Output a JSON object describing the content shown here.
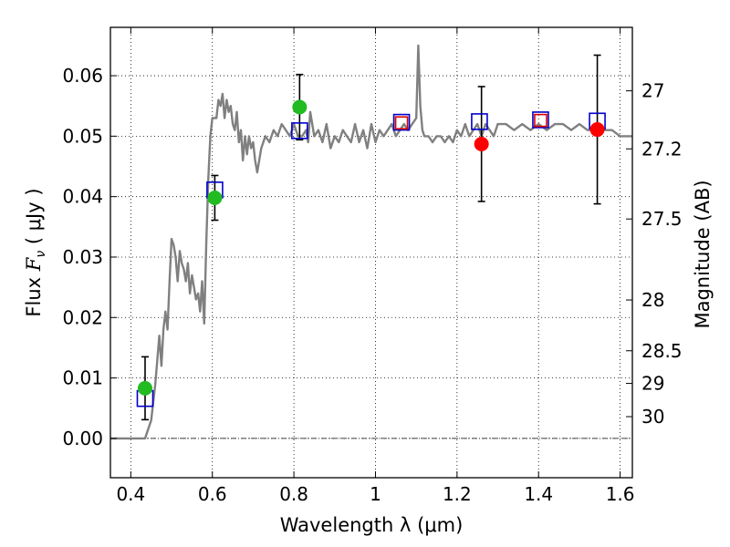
{
  "chart_data": {
    "type": "scatter",
    "xlabel": "Wavelength  λ (μm)",
    "ylabel": "Flux  F_ν  ( μJy )",
    "ylabel_parts": {
      "prefix": "Flux  ",
      "symbol": "F",
      "subscript": "ν",
      "suffix": "  ( μJy )"
    },
    "y2label": "Magnitude (AB)",
    "xlim": [
      0.35,
      1.63
    ],
    "ylim": [
      -0.0065,
      0.068
    ],
    "grid": true,
    "x_ticks": [
      0.4,
      0.6,
      0.8,
      1.0,
      1.2,
      1.4,
      1.6
    ],
    "x_tick_labels": [
      "0.4",
      "0.6",
      "0.8",
      "1",
      "1.2",
      "1.4",
      "1.6"
    ],
    "y_ticks": [
      0.0,
      0.01,
      0.02,
      0.03,
      0.04,
      0.05,
      0.06
    ],
    "y_tick_labels": [
      "0.00",
      "0.01",
      "0.02",
      "0.03",
      "0.04",
      "0.05",
      "0.06"
    ],
    "mag_ticks": [
      {
        "label": "27",
        "flux": 0.0575
      },
      {
        "label": "27.2",
        "flux": 0.0479
      },
      {
        "label": "27.5",
        "flux": 0.0363
      },
      {
        "label": "28",
        "flux": 0.0229
      },
      {
        "label": "28.5",
        "flux": 0.0145
      },
      {
        "label": "29",
        "flux": 0.0091
      },
      {
        "label": "30",
        "flux": 0.0036
      }
    ],
    "colors": {
      "model": "#808080",
      "green": "#22bb22",
      "red": "#ff0000",
      "box_blue": "#0000cc",
      "box_red": "#dd0000",
      "errorbar": "#000000"
    },
    "model_spectrum": {
      "name": "",
      "x": [
        0.35,
        0.42,
        0.435,
        0.44,
        0.45,
        0.46,
        0.465,
        0.47,
        0.475,
        0.48,
        0.485,
        0.49,
        0.495,
        0.5,
        0.505,
        0.51,
        0.515,
        0.52,
        0.525,
        0.53,
        0.535,
        0.54,
        0.545,
        0.55,
        0.555,
        0.56,
        0.565,
        0.57,
        0.575,
        0.58,
        0.585,
        0.59,
        0.595,
        0.6,
        0.605,
        0.61,
        0.615,
        0.62,
        0.625,
        0.63,
        0.635,
        0.64,
        0.645,
        0.65,
        0.655,
        0.66,
        0.665,
        0.67,
        0.675,
        0.68,
        0.685,
        0.69,
        0.695,
        0.7,
        0.705,
        0.71,
        0.72,
        0.73,
        0.74,
        0.75,
        0.76,
        0.77,
        0.78,
        0.79,
        0.8,
        0.81,
        0.82,
        0.83,
        0.835,
        0.84,
        0.85,
        0.86,
        0.87,
        0.88,
        0.89,
        0.9,
        0.91,
        0.92,
        0.93,
        0.94,
        0.95,
        0.96,
        0.97,
        0.98,
        0.99,
        1.0,
        1.01,
        1.02,
        1.03,
        1.04,
        1.05,
        1.06,
        1.07,
        1.08,
        1.09,
        1.1,
        1.105,
        1.11,
        1.115,
        1.12,
        1.13,
        1.14,
        1.15,
        1.16,
        1.17,
        1.18,
        1.19,
        1.2,
        1.21,
        1.22,
        1.23,
        1.24,
        1.25,
        1.26,
        1.27,
        1.28,
        1.29,
        1.3,
        1.32,
        1.34,
        1.36,
        1.38,
        1.4,
        1.42,
        1.44,
        1.46,
        1.48,
        1.5,
        1.52,
        1.54,
        1.56,
        1.58,
        1.6,
        1.63
      ],
      "y": [
        0.0,
        0.0,
        0.0,
        0.001,
        0.003,
        0.009,
        0.013,
        0.017,
        0.012,
        0.018,
        0.021,
        0.018,
        0.026,
        0.033,
        0.032,
        0.03,
        0.026,
        0.031,
        0.029,
        0.028,
        0.026,
        0.029,
        0.024,
        0.027,
        0.025,
        0.023,
        0.024,
        0.021,
        0.026,
        0.019,
        0.032,
        0.043,
        0.05,
        0.053,
        0.053,
        0.053,
        0.056,
        0.055,
        0.057,
        0.053,
        0.056,
        0.054,
        0.055,
        0.052,
        0.051,
        0.054,
        0.049,
        0.051,
        0.046,
        0.05,
        0.047,
        0.05,
        0.048,
        0.049,
        0.046,
        0.044,
        0.048,
        0.05,
        0.049,
        0.051,
        0.05,
        0.052,
        0.051,
        0.05,
        0.052,
        0.05,
        0.05,
        0.051,
        0.049,
        0.054,
        0.05,
        0.051,
        0.049,
        0.052,
        0.048,
        0.05,
        0.049,
        0.051,
        0.05,
        0.049,
        0.052,
        0.049,
        0.051,
        0.048,
        0.052,
        0.049,
        0.051,
        0.05,
        0.051,
        0.052,
        0.05,
        0.051,
        0.052,
        0.051,
        0.052,
        0.053,
        0.065,
        0.055,
        0.051,
        0.05,
        0.05,
        0.049,
        0.05,
        0.05,
        0.049,
        0.05,
        0.049,
        0.051,
        0.05,
        0.052,
        0.05,
        0.051,
        0.052,
        0.05,
        0.052,
        0.051,
        0.05,
        0.052,
        0.052,
        0.051,
        0.052,
        0.051,
        0.052,
        0.051,
        0.052,
        0.052,
        0.051,
        0.052,
        0.051,
        0.051,
        0.051,
        0.051,
        0.05,
        0.05
      ]
    },
    "model_boxes": [
      {
        "x": 0.435,
        "y": 0.0066,
        "color": "#0000cc"
      },
      {
        "x": 0.606,
        "y": 0.0411,
        "color": "#0000cc"
      },
      {
        "x": 0.814,
        "y": 0.0509,
        "color": "#0000cc"
      },
      {
        "x": 1.064,
        "y": 0.0523,
        "color": "#0000cc"
      },
      {
        "x": 1.064,
        "y": 0.0522,
        "color": "#dd0000",
        "small": true
      },
      {
        "x": 1.255,
        "y": 0.0524,
        "color": "#0000cc"
      },
      {
        "x": 1.405,
        "y": 0.0527,
        "color": "#0000cc"
      },
      {
        "x": 1.405,
        "y": 0.0526,
        "color": "#dd0000",
        "small": true
      },
      {
        "x": 1.544,
        "y": 0.0525,
        "color": "#0000cc"
      }
    ],
    "observed_points": [
      {
        "x": 0.435,
        "y": 0.0083,
        "err": 0.0052,
        "color": "#22bb22"
      },
      {
        "x": 0.606,
        "y": 0.0398,
        "err": 0.0037,
        "color": "#22bb22"
      },
      {
        "x": 0.814,
        "y": 0.0548,
        "err": 0.0054,
        "color": "#22bb22"
      },
      {
        "x": 1.26,
        "y": 0.0487,
        "err": 0.0095,
        "color": "#ff0000"
      },
      {
        "x": 1.544,
        "y": 0.0511,
        "err": 0.0123,
        "color": "#ff0000"
      }
    ]
  }
}
